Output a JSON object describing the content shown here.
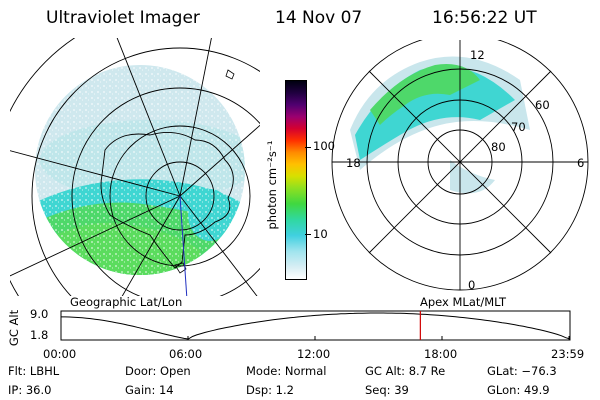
{
  "header": {
    "title": "Ultraviolet Imager",
    "date": "14 Nov 07",
    "time": "16:56:22 UT"
  },
  "left_panel": {
    "caption": "Geographic Lat/Lon"
  },
  "right_panel": {
    "caption": "Apex MLat/MLT",
    "mlt_labels": [
      "12",
      "18",
      "6",
      "0"
    ],
    "mlat_labels": [
      "60",
      "70",
      "80"
    ]
  },
  "colorbar": {
    "unit_label": "photon cm⁻²s⁻¹",
    "tick_labels": [
      "100",
      "10"
    ]
  },
  "timeline": {
    "ylabel": "GC Alt",
    "ytick_top": "9.0",
    "ytick_bottom": "1.8",
    "time_ticks": [
      "00:00",
      "06:00",
      "12:00",
      "18:00",
      "23:59"
    ],
    "current_time_marker_fraction": 0.706
  },
  "info": {
    "flt": "Flt: LBHL",
    "door": "Door: Open",
    "mode": "Mode: Normal",
    "gc_alt": "GC Alt: 8.7 Re",
    "glat": "GLat:  −76.3",
    "ip": "IP: 36.0",
    "gain": "Gain: 14",
    "dsp": "Dsp:      1.2",
    "seq": "Seq: 39",
    "glon": "GLon:   49.9"
  },
  "colors": {
    "aurora_green": "#4ed86a",
    "aurora_cyan": "#3fd6d2",
    "haze": "#c9e6ec",
    "marker": "#d00000"
  }
}
